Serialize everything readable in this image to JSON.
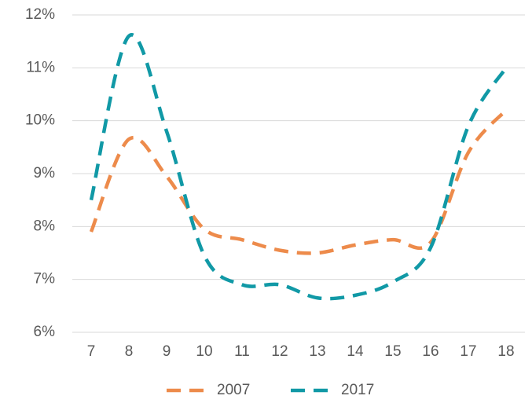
{
  "chart_data": {
    "type": "line",
    "categories": [
      "7",
      "8",
      "9",
      "10",
      "11",
      "12",
      "13",
      "14",
      "15",
      "16",
      "17",
      "18"
    ],
    "series": [
      {
        "name": "2007",
        "color": "#ed8b4b",
        "values": [
          7.9,
          9.65,
          8.95,
          7.95,
          7.75,
          7.55,
          7.5,
          7.65,
          7.75,
          7.7,
          9.4,
          10.2
        ]
      },
      {
        "name": "2017",
        "color": "#1199a6",
        "values": [
          8.5,
          11.6,
          9.8,
          7.45,
          6.9,
          6.9,
          6.65,
          6.7,
          6.95,
          7.6,
          9.9,
          11.0
        ]
      }
    ],
    "ylim": [
      6,
      12
    ],
    "yticks": [
      {
        "value": 6,
        "label": "6%"
      },
      {
        "value": 7,
        "label": "7%"
      },
      {
        "value": 8,
        "label": "8%"
      },
      {
        "value": 9,
        "label": "9%"
      },
      {
        "value": 10,
        "label": "10%"
      },
      {
        "value": 11,
        "label": "11%"
      },
      {
        "value": 12,
        "label": "12%"
      }
    ],
    "grid": true,
    "legend": "bottom"
  }
}
